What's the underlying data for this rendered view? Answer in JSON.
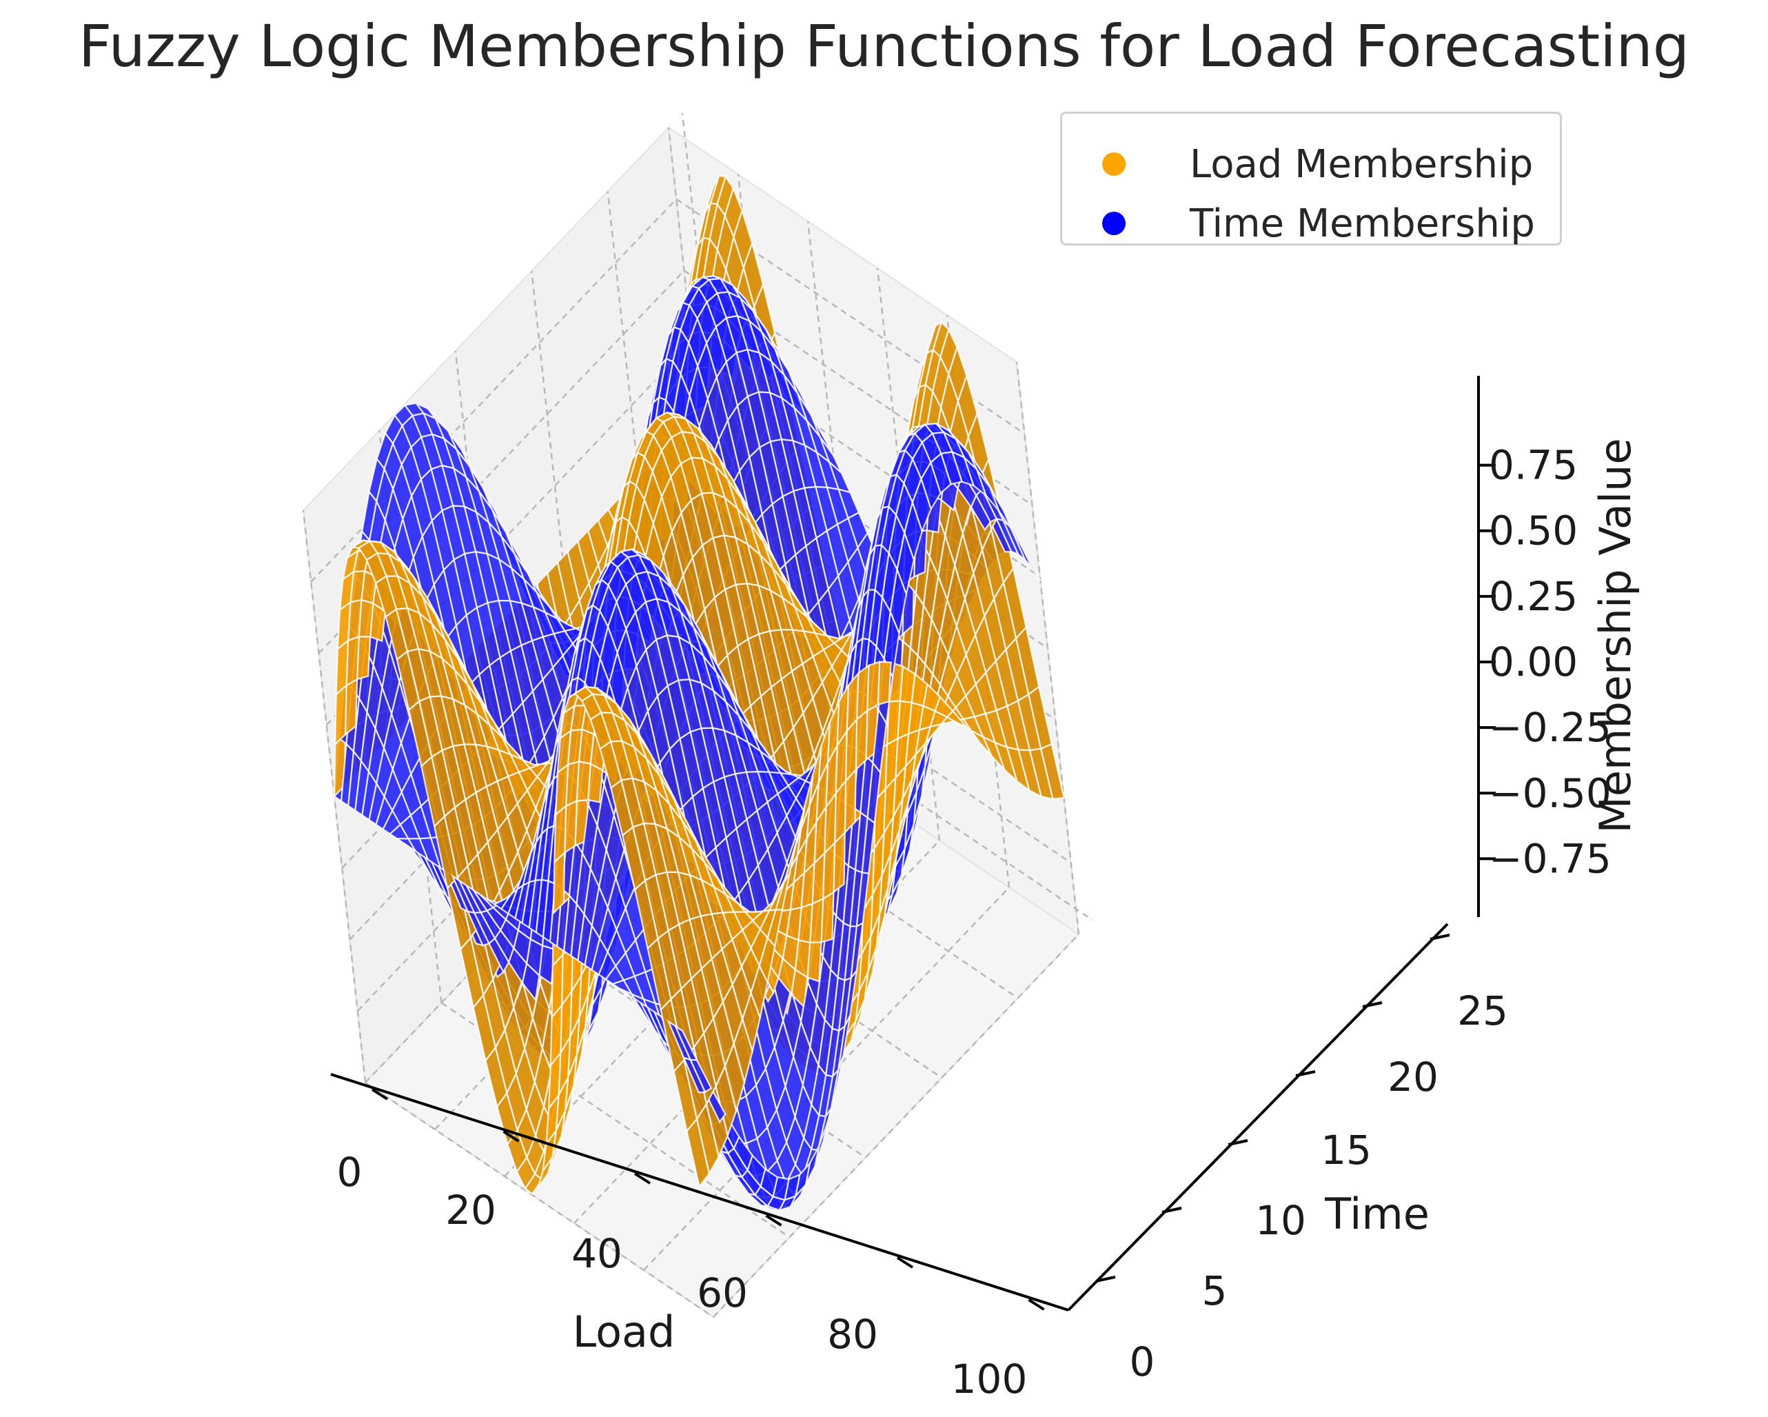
{
  "chart_data": {
    "type": "surface3d",
    "title": "Fuzzy Logic Membership Functions for Load Forecasting",
    "xlabel": "Load",
    "ylabel": "Time",
    "zlabel": "Membership Value",
    "xlim": [
      0,
      100
    ],
    "ylim": [
      0,
      24
    ],
    "zlim": [
      -1,
      1
    ],
    "x_ticks": [
      0,
      20,
      40,
      60,
      80,
      100
    ],
    "y_ticks": [
      0,
      5,
      10,
      15,
      20,
      25
    ],
    "z_ticks": [
      -0.75,
      -0.5,
      -0.25,
      0.0,
      0.25,
      0.5,
      0.75
    ],
    "x_tick_labels": [
      "0",
      "20",
      "40",
      "60",
      "80",
      "100"
    ],
    "y_tick_labels": [
      "0",
      "5",
      "10",
      "15",
      "20",
      "25"
    ],
    "z_tick_labels": [
      "−0.75",
      "−0.50",
      "−0.25",
      "0.00",
      "0.25",
      "0.50",
      "0.75"
    ],
    "grid": true,
    "legend_position": "top-right",
    "series": [
      {
        "name": "Load Membership",
        "color": "#ffa500",
        "function": "z = sin(x/10) * cos(y/4)",
        "z_samples_x_at_y0": [
          {
            "x": 0,
            "z": 0.0
          },
          {
            "x": 15.7,
            "z": 1.0
          },
          {
            "x": 47.1,
            "z": -1.0
          },
          {
            "x": 78.5,
            "z": 1.0
          },
          {
            "x": 100,
            "z": -0.54
          }
        ]
      },
      {
        "name": "Time Membership",
        "color": "#0000ff",
        "function": "z = cos(x/10) * sin(y/4)",
        "z_samples_x_at_y6": [
          {
            "x": 0,
            "z": 1.0
          },
          {
            "x": 31.4,
            "z": -1.0
          },
          {
            "x": 62.8,
            "z": 1.0
          },
          {
            "x": 94.2,
            "z": -1.0
          }
        ]
      }
    ]
  }
}
